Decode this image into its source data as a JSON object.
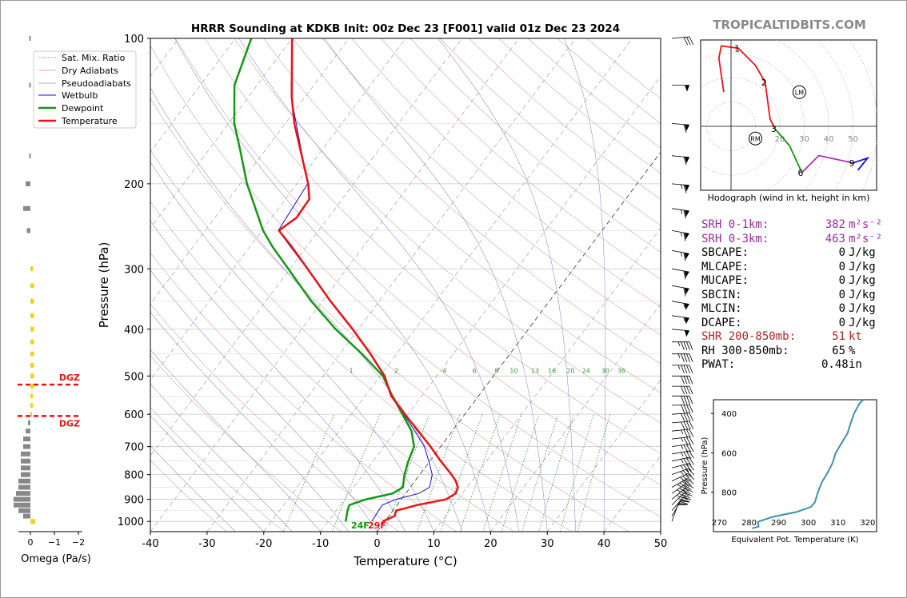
{
  "header": {
    "title": "HRRR Sounding at KDKB Init: 00z Dec 23 [F001] valid 01z Dec 23 2024",
    "site": "TROPICALTIDBITS.COM"
  },
  "legend": [
    "Sat. Mix. Ratio",
    "Dry Adiabats",
    "Pseudoadiabats",
    "Wetbulb",
    "Dewpoint",
    "Temperature"
  ],
  "dgz_label": "DGZ",
  "surface_labels": {
    "dewpoint": "24F",
    "temperature": "29F"
  },
  "omega": {
    "xlabel": "Omega (Pa/s)",
    "ticks": [
      "0",
      "−1",
      "−2"
    ]
  },
  "mixing_ratio_labels": [
    "1",
    "2",
    "4",
    "6",
    "8",
    "10",
    "13",
    "16",
    "20",
    "24",
    "30",
    "36"
  ],
  "hodograph": {
    "caption": "Hodograph (wind in kt, height in km)",
    "ring_labels": [
      "20",
      "30",
      "40",
      "50"
    ],
    "height_labels": [
      "1",
      "2",
      "3",
      "6",
      "9"
    ],
    "motion_labels": [
      "LM",
      "RM"
    ]
  },
  "indices": [
    {
      "label": "SRH 0-1km:",
      "value": "382",
      "unit": "m²s⁻²",
      "color": "#9a2aa0"
    },
    {
      "label": "SRH 0-3km:",
      "value": "463",
      "unit": "m²s⁻²",
      "color": "#9a2aa0"
    },
    {
      "label": "SBCAPE:",
      "value": "0",
      "unit": "J/kg",
      "color": "#000000"
    },
    {
      "label": "MLCAPE:",
      "value": "0",
      "unit": "J/kg",
      "color": "#000000"
    },
    {
      "label": "MUCAPE:",
      "value": "0",
      "unit": "J/kg",
      "color": "#000000"
    },
    {
      "label": "SBCIN:",
      "value": "0",
      "unit": "J/kg",
      "color": "#000000"
    },
    {
      "label": "MLCIN:",
      "value": "0",
      "unit": "J/kg",
      "color": "#000000"
    },
    {
      "label": "DCAPE:",
      "value": "0",
      "unit": "J/kg",
      "color": "#000000"
    },
    {
      "label": "SHR 200-850mb:",
      "value": "51",
      "unit": "kt",
      "color": "#b22222"
    },
    {
      "label": "RH 300-850mb:",
      "value": "65",
      "unit": "%",
      "color": "#000000"
    },
    {
      "label": "PWAT:",
      "value": "0.48",
      "unit": "in",
      "color": "#000000"
    }
  ],
  "chart_data": [
    {
      "type": "line",
      "title": "HRRR Sounding at KDKB Init: 00z Dec 23 [F001] valid 01z Dec 23 2024",
      "xlabel": "Temperature (°C)",
      "ylabel": "Pressure (hPa)",
      "xlim": [
        -40,
        50
      ],
      "ylim": [
        1050,
        100
      ],
      "y_scale": "log",
      "skew": true,
      "x_ticks": [
        -40,
        -30,
        -20,
        -10,
        0,
        10,
        20,
        30,
        40,
        50
      ],
      "y_ticks": [
        1000,
        900,
        800,
        700,
        600,
        500,
        400,
        300,
        200,
        100
      ],
      "legend_position": "top-left",
      "colors": {
        "temperature": "#ee1111",
        "dewpoint": "#119911",
        "wetbulb": "#1111dd"
      },
      "series": [
        {
          "name": "Temperature",
          "points": [
            [
              1000,
              -0.4
            ],
            [
              975,
              1.0
            ],
            [
              950,
              0.6
            ],
            [
              925,
              3.6
            ],
            [
              900,
              7.9
            ],
            [
              875,
              8.8
            ],
            [
              850,
              8.4
            ],
            [
              825,
              7.2
            ],
            [
              800,
              5.6
            ],
            [
              750,
              1.9
            ],
            [
              700,
              -1.8
            ],
            [
              650,
              -6.0
            ],
            [
              600,
              -10.6
            ],
            [
              550,
              -15.4
            ],
            [
              500,
              -19.2
            ],
            [
              450,
              -24.6
            ],
            [
              400,
              -31.0
            ],
            [
              350,
              -38.6
            ],
            [
              300,
              -46.9
            ],
            [
              270,
              -52.6
            ],
            [
              250,
              -57.0
            ],
            [
              235,
              -55.6
            ],
            [
              215,
              -55.8
            ],
            [
              200,
              -58.0
            ],
            [
              150,
              -68.4
            ],
            [
              132,
              -72.4
            ],
            [
              100,
              -80.0
            ]
          ]
        },
        {
          "name": "Dewpoint",
          "points": [
            [
              1000,
              -6.9
            ],
            [
              950,
              -8.0
            ],
            [
              925,
              -8.4
            ],
            [
              900,
              -6.2
            ],
            [
              875,
              -2.3
            ],
            [
              850,
              -1.3
            ],
            [
              800,
              -2.7
            ],
            [
              750,
              -3.8
            ],
            [
              700,
              -4.7
            ],
            [
              650,
              -7.2
            ],
            [
              600,
              -11.0
            ],
            [
              550,
              -15.2
            ],
            [
              500,
              -19.5
            ],
            [
              450,
              -26.1
            ],
            [
              400,
              -34.0
            ],
            [
              350,
              -42.0
            ],
            [
              300,
              -50.3
            ],
            [
              270,
              -56.0
            ],
            [
              250,
              -59.8
            ],
            [
              200,
              -68.8
            ],
            [
              170,
              -74.5
            ],
            [
              150,
              -79.0
            ],
            [
              125,
              -84.0
            ],
            [
              100,
              -87.2
            ]
          ]
        },
        {
          "name": "Wetbulb",
          "points": [
            [
              1000,
              -2.3
            ],
            [
              950,
              -2.5
            ],
            [
              925,
              -2.6
            ],
            [
              900,
              -0.9
            ],
            [
              875,
              2.3
            ],
            [
              850,
              3.4
            ],
            [
              800,
              2.2
            ],
            [
              750,
              -0.2
            ],
            [
              700,
              -2.9
            ],
            [
              650,
              -6.6
            ],
            [
              600,
              -10.8
            ],
            [
              550,
              -15.3
            ],
            [
              500,
              -19.3
            ],
            [
              450,
              -24.7
            ],
            [
              400,
              -31.1
            ],
            [
              350,
              -38.7
            ],
            [
              300,
              -47.0
            ],
            [
              250,
              -57.1
            ],
            [
              200,
              -58.1
            ],
            [
              132,
              -72.5
            ],
            [
              100,
              -80.0
            ]
          ]
        }
      ],
      "annotations": [
        "DGZ",
        "24F",
        "29F"
      ]
    },
    {
      "type": "line",
      "title": "",
      "xlabel": "Equivalent Pot. Temperature (K)",
      "ylabel": "Pressure (hPa)",
      "xlim": [
        268,
        323
      ],
      "ylim": [
        1000,
        330
      ],
      "x_ticks": [
        270,
        280,
        290,
        300,
        310,
        320
      ],
      "y_ticks": [
        400,
        600,
        800
      ],
      "colors": {
        "line": "#3b93a8"
      },
      "series": [
        {
          "name": "",
          "points": [
            [
              983,
              281.0
            ],
            [
              975,
              283.2
            ],
            [
              950,
              283.0
            ],
            [
              925,
              288.0
            ],
            [
              900,
              296.0
            ],
            [
              875,
              300.8
            ],
            [
              850,
              302.2
            ],
            [
              800,
              303.2
            ],
            [
              750,
              304.5
            ],
            [
              700,
              306.5
            ],
            [
              650,
              308.2
            ],
            [
              600,
              309.2
            ],
            [
              550,
              311.2
            ],
            [
              500,
              313.2
            ],
            [
              450,
              314.2
            ],
            [
              400,
              315.4
            ],
            [
              350,
              317.2
            ],
            [
              330,
              318.5
            ]
          ]
        }
      ]
    },
    {
      "type": "line",
      "title": "Hodograph (wind in kt, height in km)",
      "xlabel": "",
      "ylabel": "",
      "units": "kt",
      "series": [
        {
          "name": "",
          "height_km": [
            0,
            0.25,
            0.5,
            1,
            1.5,
            2,
            2.5,
            3
          ],
          "u": [
            -3,
            -5,
            -4,
            3,
            10,
            14,
            16,
            18
          ],
          "v": [
            14,
            28,
            33,
            32,
            25,
            18,
            3,
            -1
          ]
        },
        {
          "name": "",
          "height_km": [
            3,
            4.5,
            6
          ],
          "u": [
            18,
            24,
            29
          ],
          "v": [
            -1,
            -8,
            -19
          ]
        },
        {
          "name": "",
          "height_km": [
            6,
            7.5,
            9
          ],
          "u": [
            29,
            36,
            50
          ],
          "v": [
            -19,
            -12,
            -15
          ]
        },
        {
          "name": "",
          "height_km": [
            9,
            11,
            12
          ],
          "u": [
            50,
            56,
            52
          ],
          "v": [
            -15,
            -13,
            -18
          ]
        }
      ],
      "storm_motion": {
        "LM": [
          28,
          14
        ],
        "RM": [
          10,
          -5
        ]
      }
    }
  ],
  "wind_barbs_kt": [
    {
      "p": 1000,
      "spd": 11,
      "dir": 200
    },
    {
      "p": 975,
      "spd": 22,
      "dir": 210
    },
    {
      "p": 950,
      "spd": 36,
      "dir": 220
    },
    {
      "p": 925,
      "spd": 42,
      "dir": 225
    },
    {
      "p": 900,
      "spd": 47,
      "dir": 230
    },
    {
      "p": 875,
      "spd": 44,
      "dir": 235
    },
    {
      "p": 850,
      "spd": 43,
      "dir": 240
    },
    {
      "p": 825,
      "spd": 38,
      "dir": 245
    },
    {
      "p": 800,
      "spd": 34,
      "dir": 250
    },
    {
      "p": 775,
      "spd": 33,
      "dir": 255
    },
    {
      "p": 750,
      "spd": 33,
      "dir": 258
    },
    {
      "p": 725,
      "spd": 33,
      "dir": 260
    },
    {
      "p": 700,
      "spd": 36,
      "dir": 262
    },
    {
      "p": 675,
      "spd": 37,
      "dir": 263
    },
    {
      "p": 650,
      "spd": 37,
      "dir": 264
    },
    {
      "p": 625,
      "spd": 38,
      "dir": 265
    },
    {
      "p": 600,
      "spd": 38,
      "dir": 266
    },
    {
      "p": 575,
      "spd": 39,
      "dir": 268
    },
    {
      "p": 550,
      "spd": 39,
      "dir": 270
    },
    {
      "p": 525,
      "spd": 39,
      "dir": 270
    },
    {
      "p": 500,
      "spd": 41,
      "dir": 270
    },
    {
      "p": 475,
      "spd": 43,
      "dir": 270
    },
    {
      "p": 450,
      "spd": 43,
      "dir": 270
    },
    {
      "p": 425,
      "spd": 44,
      "dir": 270
    },
    {
      "p": 400,
      "spd": 52,
      "dir": 275
    },
    {
      "p": 375,
      "spd": 57,
      "dir": 278
    },
    {
      "p": 350,
      "spd": 57,
      "dir": 280
    },
    {
      "p": 325,
      "spd": 58,
      "dir": 280
    },
    {
      "p": 300,
      "spd": 62,
      "dir": 280
    },
    {
      "p": 275,
      "spd": 67,
      "dir": 280
    },
    {
      "p": 250,
      "spd": 67,
      "dir": 280
    },
    {
      "p": 225,
      "spd": 63,
      "dir": 278
    },
    {
      "p": 200,
      "spd": 67,
      "dir": 275
    },
    {
      "p": 175,
      "spd": 62,
      "dir": 275
    },
    {
      "p": 150,
      "spd": 58,
      "dir": 275
    },
    {
      "p": 125,
      "spd": 52,
      "dir": 270
    },
    {
      "p": 100,
      "spd": 32,
      "dir": 265
    }
  ],
  "omega_bars": [
    {
      "p": 1000,
      "w": -0.2,
      "color": "#f0d020"
    },
    {
      "p": 975,
      "w": 0.3,
      "color": "#888888"
    },
    {
      "p": 950,
      "w": 0.5,
      "color": "#888888"
    },
    {
      "p": 925,
      "w": 0.7,
      "color": "#888888"
    },
    {
      "p": 900,
      "w": 0.7,
      "color": "#888888"
    },
    {
      "p": 875,
      "w": 0.6,
      "color": "#888888"
    },
    {
      "p": 850,
      "w": 0.5,
      "color": "#888888"
    },
    {
      "p": 825,
      "w": 0.5,
      "color": "#888888"
    },
    {
      "p": 800,
      "w": 0.4,
      "color": "#888888"
    },
    {
      "p": 775,
      "w": 0.4,
      "color": "#888888"
    },
    {
      "p": 750,
      "w": 0.4,
      "color": "#888888"
    },
    {
      "p": 725,
      "w": 0.4,
      "color": "#888888"
    },
    {
      "p": 700,
      "w": 0.3,
      "color": "#888888"
    },
    {
      "p": 675,
      "w": 0.3,
      "color": "#888888"
    },
    {
      "p": 650,
      "w": 0.2,
      "color": "#888888"
    },
    {
      "p": 625,
      "w": 0.1,
      "color": "#888888"
    },
    {
      "p": 600,
      "w": -0.05,
      "color": "#f0d020"
    },
    {
      "p": 575,
      "w": -0.1,
      "color": "#f0d020"
    },
    {
      "p": 550,
      "w": -0.1,
      "color": "#f0d020"
    },
    {
      "p": 525,
      "w": -0.15,
      "color": "#f0d020"
    },
    {
      "p": 500,
      "w": -0.15,
      "color": "#f0d020"
    },
    {
      "p": 475,
      "w": -0.15,
      "color": "#f0d020"
    },
    {
      "p": 450,
      "w": -0.15,
      "color": "#f0d020"
    },
    {
      "p": 425,
      "w": -0.15,
      "color": "#f0d020"
    },
    {
      "p": 400,
      "w": -0.15,
      "color": "#f0d020"
    },
    {
      "p": 375,
      "w": -0.15,
      "color": "#f0d020"
    },
    {
      "p": 350,
      "w": -0.15,
      "color": "#f0d020"
    },
    {
      "p": 325,
      "w": -0.15,
      "color": "#f0d020"
    },
    {
      "p": 300,
      "w": -0.1,
      "color": "#f0d020"
    },
    {
      "p": 250,
      "w": 0.15,
      "color": "#888888"
    },
    {
      "p": 225,
      "w": 0.3,
      "color": "#888888"
    },
    {
      "p": 200,
      "w": 0.2,
      "color": "#888888"
    },
    {
      "p": 175,
      "w": 0.05,
      "color": "#888888"
    },
    {
      "p": 125,
      "w": 0.05,
      "color": "#888888"
    },
    {
      "p": 100,
      "w": 0.05,
      "color": "#888888"
    }
  ],
  "dgz_pressures_hpa": [
    521,
    605
  ]
}
